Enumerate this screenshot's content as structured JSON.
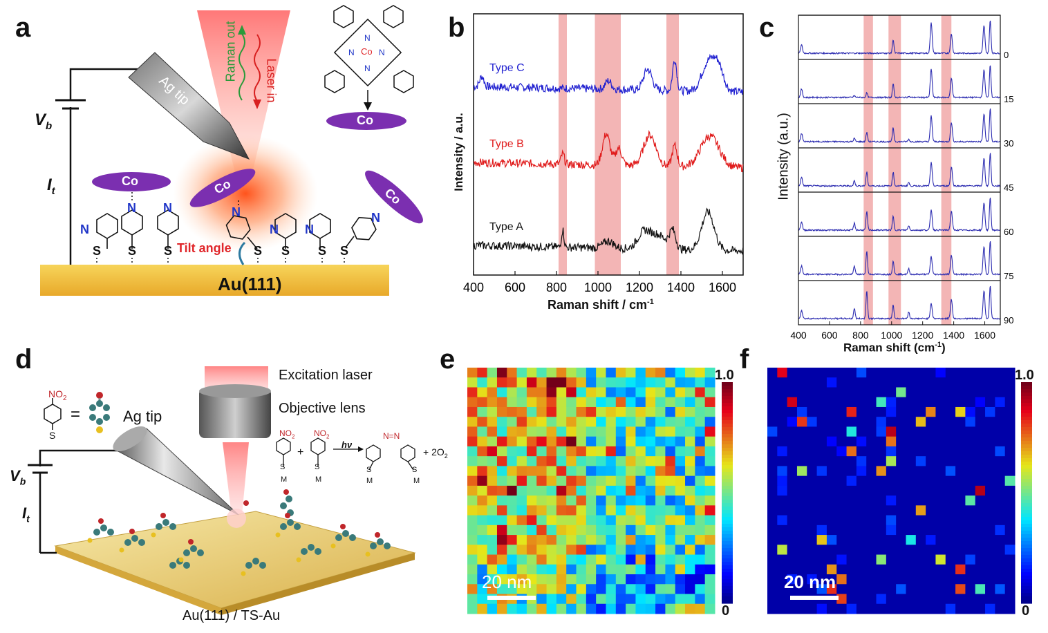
{
  "panel_letters": {
    "a": "a",
    "b": "b",
    "c": "c",
    "d": "d",
    "e": "e",
    "f": "f"
  },
  "panel_a": {
    "vb": "V",
    "vb_sub": "b",
    "it": "I",
    "it_sub": "t",
    "ag_tip": "Ag tip",
    "raman_out": "Raman out",
    "laser_in": "Laser in",
    "co": "Co",
    "n": "N",
    "s": "S",
    "tilt_angle": "Tilt angle",
    "substrate": "Au(111)",
    "porphyrin_co": "Co",
    "porphyrin_n": "N",
    "colors": {
      "co_ellipse": "#7b2fb0",
      "red": "#e0262a",
      "n_blue": "#1f35c8",
      "gold": "#f2c33c"
    }
  },
  "panel_b": {
    "ylabel": "Intensity / a.u.",
    "xlabel": "Raman shift / cm",
    "xlabel_sup": "-1",
    "xticks": [
      "400",
      "600",
      "800",
      "1000",
      "1200",
      "1400",
      "1600"
    ],
    "xlim": [
      400,
      1700
    ],
    "highlight_bands": [
      [
        810,
        850
      ],
      [
        985,
        1110
      ],
      [
        1330,
        1390
      ]
    ],
    "series": [
      {
        "name": "Type C",
        "color": "#1f1fd0"
      },
      {
        "name": "Type B",
        "color": "#e01b1b"
      },
      {
        "name": "Type A",
        "color": "#111111"
      }
    ]
  },
  "panel_c": {
    "ylabel": "Intensity (a.u.)",
    "xlabel": "Raman shift (cm",
    "xlabel_sup": "-1",
    "xlabel_close": ")",
    "xticks": [
      "400",
      "600",
      "800",
      "1000",
      "1200",
      "1400",
      "1600"
    ],
    "angles": [
      "0",
      "15",
      "30",
      "45",
      "60",
      "75",
      "90"
    ],
    "highlight_bands": [
      [
        820,
        880
      ],
      [
        980,
        1060
      ],
      [
        1320,
        1385
      ]
    ],
    "line_color": "#2a2ab0"
  },
  "panel_d": {
    "no2": "NO",
    "no2_sub": "2",
    "s": "S",
    "equals": "=",
    "ag_tip": "Ag tip",
    "excitation_laser": "Excitation laser",
    "objective_lens": "Objective lens",
    "vb": "V",
    "vb_sub": "b",
    "it": "I",
    "it_sub": "t",
    "substrate": "Au(111) / TS-Au",
    "reaction": {
      "plus": "+",
      "hv": "hν",
      "azo": "N=N",
      "product_extra": "+ 2O",
      "product_extra_sub": "2",
      "m": "M"
    }
  },
  "panel_e": {
    "scale_bar": "20 nm",
    "colorbar_max": "1.0",
    "colorbar_min": "0"
  },
  "panel_f": {
    "scale_bar": "20 nm",
    "colorbar_max": "1.0",
    "colorbar_min": "0"
  }
}
